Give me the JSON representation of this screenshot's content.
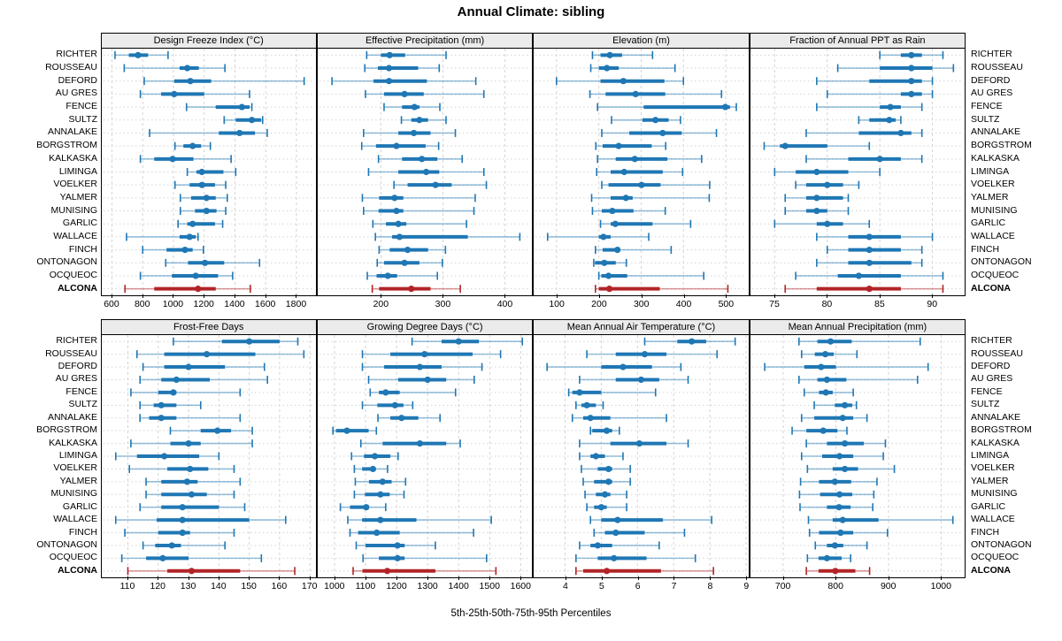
{
  "chart_data": {
    "type": "dotplot-percentiles",
    "title": "Annual Climate: sibling",
    "caption": "5th-25th-50th-75th-95th Percentiles",
    "percentile_labels": [
      "5th",
      "25th",
      "50th",
      "75th",
      "95th"
    ],
    "legend_position": "none",
    "grid": true,
    "sites": [
      "RICHTER",
      "ROUSSEAU",
      "DEFORD",
      "AU GRES",
      "FENCE",
      "SULTZ",
      "ANNALAKE",
      "BORGSTROM",
      "KALKASKA",
      "LIMINGA",
      "VOELKER",
      "YALMER",
      "MUNISING",
      "GARLIC",
      "WALLACE",
      "FINCH",
      "ONTONAGON",
      "OCQUEOC",
      "ALCONA"
    ],
    "highlight_site": "ALCONA",
    "colors": {
      "series": "#1f77b4",
      "highlight": "#b22427",
      "grid": "#d4d4d4",
      "header_bg": "#ebebeb",
      "border": "#000000"
    },
    "panels": [
      {
        "title": "Design Freeze Index (°C)",
        "row": 0,
        "col": 0,
        "domain": [
          534,
          1929
        ],
        "ticks": [
          600,
          800,
          1000,
          1200,
          1400,
          1600,
          1800
        ],
        "values": [
          [
            620,
            710,
            770,
            835,
            965
          ],
          [
            680,
            1040,
            1090,
            1165,
            1335
          ],
          [
            810,
            1005,
            1110,
            1245,
            1850
          ],
          [
            785,
            920,
            1005,
            1200,
            1495
          ],
          [
            1085,
            1275,
            1445,
            1495,
            1510
          ],
          [
            1330,
            1405,
            1510,
            1570,
            1580
          ],
          [
            845,
            1295,
            1430,
            1530,
            1610
          ],
          [
            1010,
            1065,
            1125,
            1180,
            1240
          ],
          [
            785,
            875,
            995,
            1130,
            1375
          ],
          [
            1090,
            1150,
            1185,
            1325,
            1405
          ],
          [
            1010,
            1105,
            1185,
            1270,
            1340
          ],
          [
            1045,
            1115,
            1215,
            1275,
            1350
          ],
          [
            1045,
            1140,
            1215,
            1280,
            1340
          ],
          [
            1030,
            1090,
            1125,
            1270,
            1320
          ],
          [
            695,
            1040,
            1105,
            1145,
            1160
          ],
          [
            800,
            955,
            1075,
            1125,
            1195
          ],
          [
            950,
            1095,
            1205,
            1330,
            1560
          ],
          [
            785,
            990,
            1145,
            1290,
            1385
          ],
          [
            685,
            875,
            1160,
            1275,
            1500
          ]
        ]
      },
      {
        "title": "Effective Precipitation (mm)",
        "row": 0,
        "col": 1,
        "domain": [
          98,
          444
        ],
        "ticks": [
          200,
          300,
          400
        ],
        "values": [
          [
            177,
            200,
            214,
            239,
            305
          ],
          [
            174,
            195,
            213,
            260,
            294
          ],
          [
            121,
            188,
            213,
            274,
            353
          ],
          [
            175,
            205,
            238,
            269,
            366
          ],
          [
            205,
            234,
            254,
            262,
            295
          ],
          [
            233,
            249,
            262,
            276,
            305
          ],
          [
            172,
            228,
            253,
            280,
            320
          ],
          [
            169,
            192,
            225,
            272,
            293
          ],
          [
            196,
            234,
            266,
            291,
            331
          ],
          [
            180,
            228,
            273,
            294,
            366
          ],
          [
            221,
            243,
            288,
            314,
            370
          ],
          [
            170,
            197,
            222,
            236,
            352
          ],
          [
            172,
            196,
            225,
            236,
            350
          ],
          [
            187,
            208,
            228,
            241,
            338
          ],
          [
            191,
            218,
            230,
            340,
            424
          ],
          [
            197,
            214,
            243,
            276,
            304
          ],
          [
            194,
            205,
            238,
            262,
            299
          ],
          [
            178,
            193,
            211,
            226,
            291
          ],
          [
            186,
            197,
            249,
            280,
            328
          ]
        ]
      },
      {
        "title": "Elevation (m)",
        "row": 0,
        "col": 2,
        "domain": [
          46,
          553
        ],
        "ticks": [
          100,
          200,
          300,
          400,
          500
        ],
        "values": [
          [
            185,
            204,
            226,
            255,
            327
          ],
          [
            181,
            200,
            219,
            247,
            380
          ],
          [
            100,
            204,
            258,
            355,
            400
          ],
          [
            179,
            216,
            287,
            357,
            490
          ],
          [
            197,
            306,
            499,
            510,
            525
          ],
          [
            230,
            303,
            334,
            365,
            393
          ],
          [
            207,
            272,
            351,
            396,
            478
          ],
          [
            193,
            209,
            247,
            325,
            358
          ],
          [
            197,
            240,
            285,
            362,
            443
          ],
          [
            195,
            228,
            260,
            351,
            398
          ],
          [
            207,
            223,
            301,
            346,
            462
          ],
          [
            183,
            228,
            264,
            280,
            461
          ],
          [
            185,
            207,
            232,
            282,
            357
          ],
          [
            204,
            228,
            239,
            327,
            417
          ],
          [
            79,
            200,
            211,
            228,
            318
          ],
          [
            192,
            209,
            244,
            247,
            371
          ],
          [
            188,
            191,
            213,
            240,
            265
          ],
          [
            200,
            206,
            223,
            267,
            448
          ],
          [
            192,
            200,
            225,
            344,
            505
          ]
        ]
      },
      {
        "title": "Fraction of Annual PPT as Rain",
        "row": 0,
        "col": 3,
        "domain": [
          72.7,
          93.1
        ],
        "ticks": [
          75,
          80,
          85,
          90
        ],
        "values": [
          [
            85,
            87,
            88,
            89,
            91
          ],
          [
            81,
            85,
            88,
            90,
            92
          ],
          [
            79,
            84,
            88,
            89,
            90
          ],
          [
            80,
            87,
            88,
            89,
            90
          ],
          [
            79,
            85,
            86,
            87,
            89
          ],
          [
            83,
            84,
            85.9,
            86.5,
            87
          ],
          [
            78,
            83,
            87,
            88,
            89
          ],
          [
            74,
            75.5,
            76,
            80,
            84
          ],
          [
            78,
            82,
            85,
            87,
            89
          ],
          [
            75,
            77,
            79,
            82,
            85
          ],
          [
            77,
            78,
            80,
            81.5,
            83
          ],
          [
            76,
            78,
            79,
            81.5,
            82
          ],
          [
            76,
            78,
            79,
            80,
            82
          ],
          [
            75,
            79,
            80,
            81.5,
            84
          ],
          [
            79,
            82,
            84,
            87,
            90
          ],
          [
            80,
            82,
            84,
            87,
            89
          ],
          [
            79,
            82,
            84,
            88,
            89
          ],
          [
            77,
            81,
            83,
            87,
            91
          ],
          [
            76,
            79,
            84,
            87,
            91
          ]
        ]
      },
      {
        "title": "Frost-Free Days",
        "row": 1,
        "col": 0,
        "domain": [
          101.4,
          172.1
        ],
        "ticks": [
          110,
          120,
          130,
          140,
          150,
          160,
          170
        ],
        "values": [
          [
            125,
            141,
            150,
            160,
            166
          ],
          [
            113,
            122,
            136,
            152,
            168
          ],
          [
            115,
            122,
            130,
            142,
            155
          ],
          [
            114,
            121,
            126,
            137,
            156
          ],
          [
            111,
            120,
            125,
            126,
            147
          ],
          [
            114,
            118.5,
            121,
            126,
            134
          ],
          [
            114,
            117,
            121,
            126,
            147
          ],
          [
            124,
            134,
            139.5,
            144,
            151
          ],
          [
            111,
            124,
            130,
            134,
            151
          ],
          [
            106,
            113,
            122,
            133.5,
            140
          ],
          [
            110.5,
            123,
            130.5,
            136.5,
            145
          ],
          [
            116,
            121,
            129.5,
            133,
            147
          ],
          [
            116,
            121,
            131,
            136,
            145
          ],
          [
            114,
            121,
            128,
            140,
            148.5
          ],
          [
            106,
            119.5,
            128,
            150,
            162
          ],
          [
            109,
            120,
            128,
            130.5,
            145
          ],
          [
            115,
            119,
            124.5,
            127.5,
            142
          ],
          [
            108,
            116,
            121.5,
            130,
            154
          ],
          [
            110,
            123,
            131,
            147,
            165
          ]
        ]
      },
      {
        "title": "Growing Degree Days (°C)",
        "row": 1,
        "col": 1,
        "domain": [
          946,
          1637
        ],
        "ticks": [
          1000,
          1100,
          1200,
          1300,
          1400,
          1500,
          1600
        ],
        "values": [
          [
            1250,
            1345,
            1400,
            1465,
            1605
          ],
          [
            1090,
            1180,
            1290,
            1445,
            1535
          ],
          [
            1090,
            1160,
            1275,
            1345,
            1475
          ],
          [
            1110,
            1205,
            1300,
            1360,
            1450
          ],
          [
            1115,
            1143,
            1165,
            1210,
            1390
          ],
          [
            1090,
            1138,
            1195,
            1222,
            1252
          ],
          [
            1140,
            1180,
            1216,
            1270,
            1340
          ],
          [
            995,
            1005,
            1040,
            1110,
            1135
          ],
          [
            1085,
            1155,
            1275,
            1360,
            1405
          ],
          [
            1055,
            1095,
            1130,
            1180,
            1205
          ],
          [
            1064,
            1089,
            1124,
            1132,
            1171
          ],
          [
            1067,
            1111,
            1155,
            1184,
            1229
          ],
          [
            1064,
            1098,
            1148,
            1178,
            1224
          ],
          [
            1019,
            1050,
            1102,
            1111,
            1165
          ],
          [
            1043,
            1089,
            1148,
            1264,
            1505
          ],
          [
            1050,
            1076,
            1136,
            1210,
            1448
          ],
          [
            1070,
            1100,
            1203,
            1226,
            1325
          ],
          [
            1092,
            1143,
            1203,
            1226,
            1490
          ],
          [
            1060,
            1090,
            1170,
            1325,
            1520
          ]
        ]
      },
      {
        "title": "Mean Annual Air Temperature (°C)",
        "row": 1,
        "col": 2,
        "domain": [
          3.13,
          9.06
        ],
        "ticks": [
          4,
          5,
          6,
          7,
          8,
          9
        ],
        "values": [
          [
            6.2,
            7.1,
            7.5,
            7.9,
            8.7
          ],
          [
            4.6,
            5.4,
            6.2,
            6.8,
            8.2
          ],
          [
            3.5,
            5.0,
            5.6,
            6.4,
            7.2
          ],
          [
            4.4,
            5.4,
            6.1,
            6.6,
            7.4
          ],
          [
            4.1,
            4.2,
            4.4,
            5.0,
            6.5
          ],
          [
            4.3,
            4.45,
            4.6,
            4.85,
            5.05
          ],
          [
            4.2,
            4.5,
            4.7,
            5.25,
            6.8
          ],
          [
            4.7,
            4.75,
            5.15,
            5.3,
            5.5
          ],
          [
            4.4,
            5.25,
            6.05,
            6.8,
            7.4
          ],
          [
            4.4,
            4.7,
            4.85,
            5.1,
            5.6
          ],
          [
            4.45,
            4.9,
            5.2,
            5.3,
            5.8
          ],
          [
            4.5,
            4.8,
            5.2,
            5.3,
            5.8
          ],
          [
            4.55,
            4.85,
            5.1,
            5.25,
            5.7
          ],
          [
            4.6,
            4.8,
            5.0,
            5.15,
            5.7
          ],
          [
            4.7,
            5.0,
            5.45,
            6.7,
            8.05
          ],
          [
            4.8,
            5.1,
            5.4,
            6.2,
            7.3
          ],
          [
            4.4,
            4.7,
            4.9,
            5.3,
            6.6
          ],
          [
            4.3,
            4.9,
            5.35,
            6.25,
            7.6
          ],
          [
            4.3,
            4.5,
            5.15,
            6.65,
            8.1
          ]
        ]
      },
      {
        "title": "Mean Annual Precipitation (mm)",
        "row": 1,
        "col": 3,
        "domain": [
          638,
          1045
        ],
        "ticks": [
          700,
          800,
          900,
          1000
        ],
        "values": [
          [
            730,
            765,
            790,
            830,
            960
          ],
          [
            735,
            760,
            780,
            796,
            840
          ],
          [
            665,
            740,
            772,
            800,
            975
          ],
          [
            730,
            765,
            783,
            820,
            955
          ],
          [
            740,
            768,
            781,
            794,
            833
          ],
          [
            759,
            798,
            817,
            831,
            839
          ],
          [
            735,
            759,
            813,
            833,
            859
          ],
          [
            717,
            744,
            776,
            803,
            821
          ],
          [
            744,
            783,
            817,
            853,
            894
          ],
          [
            735,
            774,
            807,
            833,
            890
          ],
          [
            746,
            794,
            817,
            842,
            911
          ],
          [
            733,
            768,
            798,
            829,
            878
          ],
          [
            731,
            770,
            807,
            831,
            872
          ],
          [
            732,
            783,
            806,
            828,
            870
          ],
          [
            748,
            794,
            813,
            881,
            1022
          ],
          [
            750,
            768,
            809,
            833,
            898
          ],
          [
            761,
            783,
            798,
            814,
            859
          ],
          [
            746,
            767,
            783,
            811,
            828
          ],
          [
            744,
            767,
            799,
            837,
            864
          ]
        ]
      }
    ]
  }
}
